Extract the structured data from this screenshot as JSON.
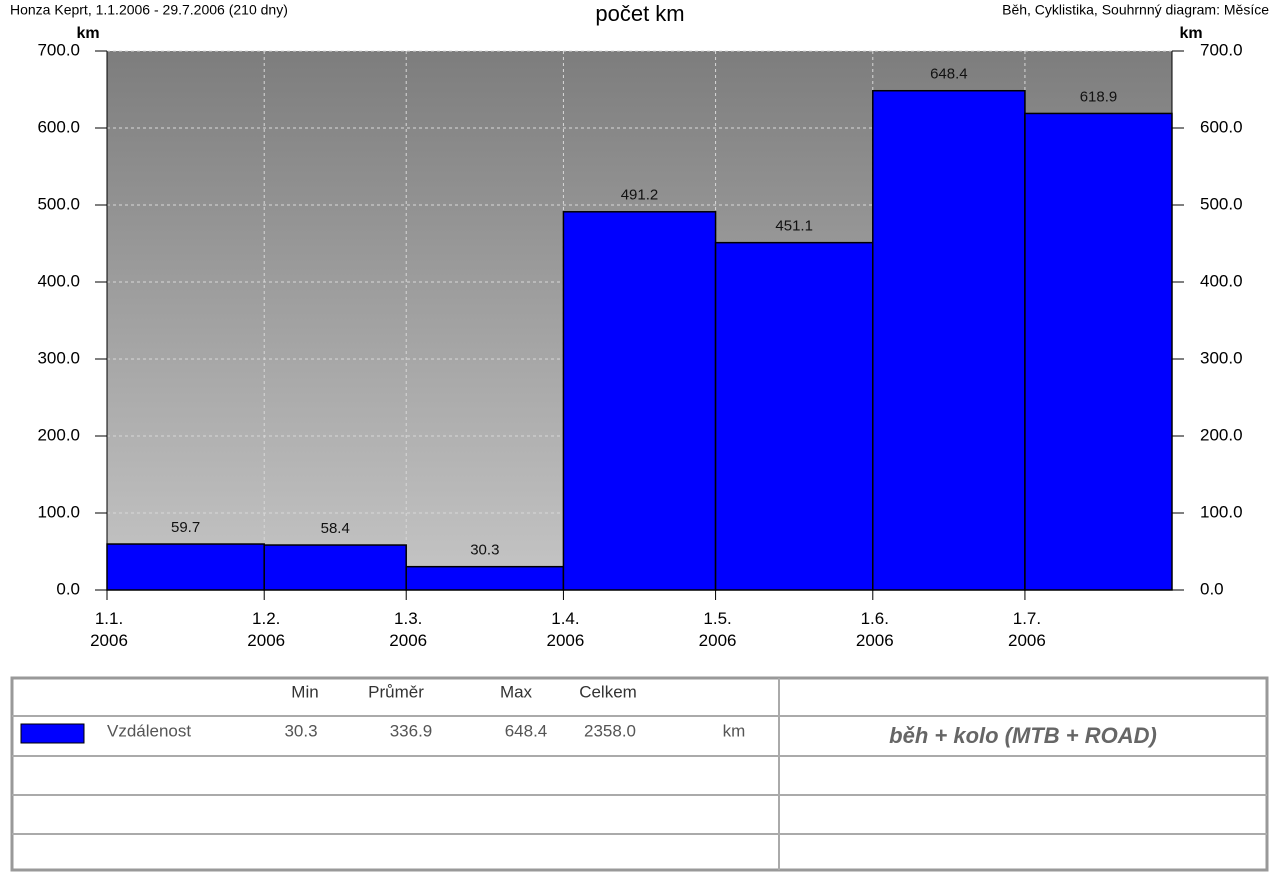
{
  "chart_data": {
    "type": "bar",
    "header_left": "Honza Keprt, 1.1.2006 - 29.7.2006 (210 dny)",
    "title": "počet km",
    "header_right": "Běh, Cyklistika, Souhrnný diagram: Měsíce",
    "y_label": "km",
    "y2_label": "km",
    "x": [
      "2006-01-01",
      "2006-02-01",
      "2006-03-01",
      "2006-04-01",
      "2006-05-01",
      "2006-06-01",
      "2006-07-01"
    ],
    "values": [
      59.7,
      58.4,
      30.3,
      491.2,
      451.1,
      648.4,
      618.9
    ],
    "color": "#0000ff",
    "xlim": [
      "2006-01-01",
      "2006-07-30"
    ],
    "xticks": [
      {
        "value": "2006-01-01",
        "label": "1.1.\n2006"
      },
      {
        "value": "2006-02-01",
        "label": "1.2.\n2006"
      },
      {
        "value": "2006-03-01",
        "label": "1.3.\n2006"
      },
      {
        "value": "2006-04-01",
        "label": "1.4.\n2006"
      },
      {
        "value": "2006-05-01",
        "label": "1.5.\n2006"
      },
      {
        "value": "2006-06-01",
        "label": "1.6.\n2006"
      },
      {
        "value": "2006-07-01",
        "label": "1.7.\n2006"
      }
    ],
    "ylim": [
      0,
      700
    ],
    "yticks": [
      {
        "value": 0,
        "label": "0.0"
      },
      {
        "value": 100,
        "label": "100.0"
      },
      {
        "value": 200,
        "label": "200.0"
      },
      {
        "value": 300,
        "label": "300.0"
      },
      {
        "value": 400,
        "label": "400.0"
      },
      {
        "value": 500,
        "label": "500.0"
      },
      {
        "value": 600,
        "label": "600.0"
      },
      {
        "value": 700,
        "label": "700.0"
      }
    ],
    "grid": true
  },
  "table": {
    "columns": [
      "Min",
      "Průměr",
      "Max",
      "Celkem"
    ],
    "rows": [
      {
        "name": "Vzdálenost",
        "color": "#0000ff",
        "values": [
          "30.3",
          "336.9",
          "648.4",
          "2358.0"
        ],
        "unit": "km"
      }
    ],
    "note": "běh + kolo (MTB + ROAD)"
  }
}
